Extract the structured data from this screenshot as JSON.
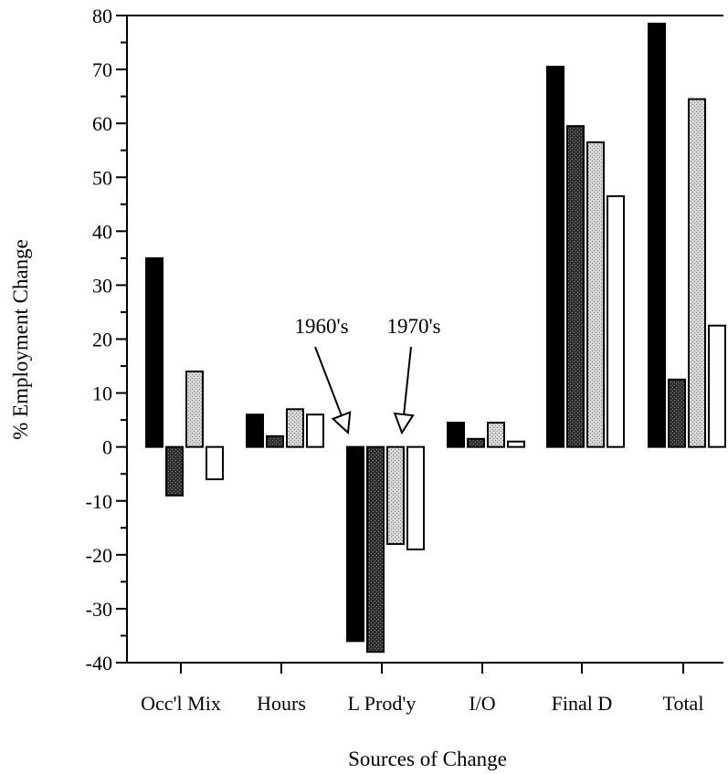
{
  "chart_data": {
    "type": "bar",
    "title": "",
    "xlabel": "Sources of Change",
    "ylabel": "% Employment Change",
    "ylim": [
      -40,
      80
    ],
    "yticks": [
      80,
      70,
      60,
      50,
      40,
      30,
      20,
      10,
      0,
      -10,
      -20,
      -30,
      -40
    ],
    "grid": false,
    "legend": "none",
    "categories": [
      "Occ'l Mix",
      "Hours",
      "L Prod'y",
      "I/O",
      "Final D",
      "Total"
    ],
    "series": [
      {
        "values": [
          35,
          6,
          -36,
          4.5,
          70.5,
          78.5
        ],
        "color": "#000000"
      },
      {
        "values": [
          -9,
          2,
          -38,
          1.5,
          59.5,
          12.5
        ],
        "color": "#3a3a3a"
      },
      {
        "values": [
          14,
          7,
          -18,
          4.5,
          56.5,
          64.5
        ],
        "color": "#bdbdbd"
      },
      {
        "values": [
          -6,
          6,
          -19,
          1,
          46.5,
          22.5
        ],
        "color": "#ffffff"
      }
    ],
    "annotations": [
      {
        "text": "1960's",
        "points_to": {
          "category": "L Prod'y",
          "series_index": 0
        }
      },
      {
        "text": "1970's",
        "points_to": {
          "category": "L Prod'y",
          "series_index": 3
        }
      }
    ]
  }
}
